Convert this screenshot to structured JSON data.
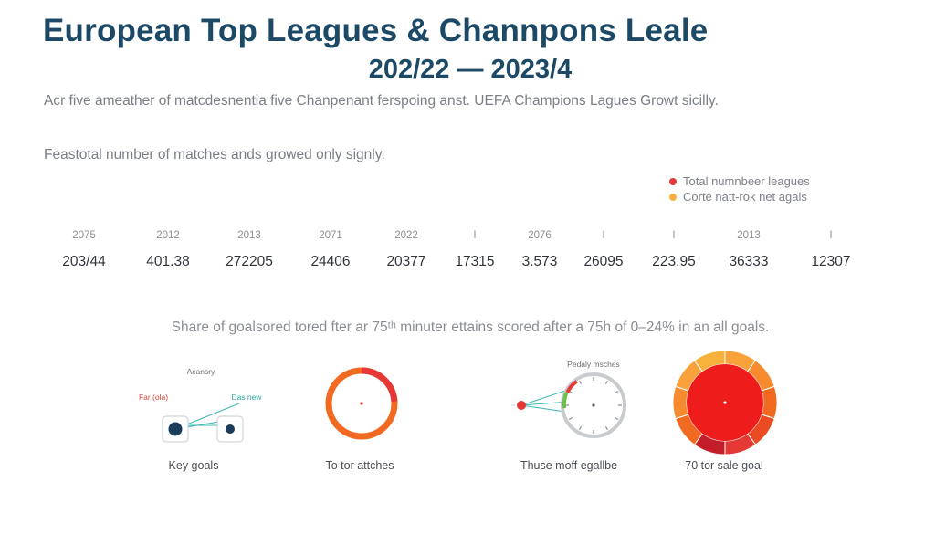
{
  "header": {
    "title": "European Top Leagues & Channpons Leale",
    "subtitle": "202/22 — 2023/4"
  },
  "description": {
    "line1": "Acr five ameather of matcdesnentia five Chanpenant ferspoing anst. UEFA Champions Lagues Growt sicilly.",
    "line2": "Feastotal number of matches ands growed only signly."
  },
  "legend": [
    {
      "label": "Total numnbeer leagues",
      "color": "#e53935"
    },
    {
      "label": "Corte natt-rok net agals",
      "color": "#f7b23b"
    }
  ],
  "chart_data": [
    {
      "type": "table",
      "columns": [
        "2075",
        "2012",
        "2013",
        "2071",
        "2022",
        "I",
        "2076",
        "I",
        "I",
        "2013",
        "I"
      ],
      "values": [
        "203/44",
        "401.38",
        "272205",
        "24406",
        "20377",
        "17315",
        "3.573",
        "26095",
        "223.95",
        "36333",
        "12307"
      ]
    },
    {
      "type": "pie",
      "title": "Share of goalsored tored fter ar 75ᵗʰ minuter ettains scored after a 75h of 0–24% in an all goals.",
      "panels": [
        {
          "caption": "Key goals",
          "label_top": "Acansry",
          "label_left": "Far (ola)",
          "label_right": "Das new"
        },
        {
          "caption": "To tor attches",
          "arc_fraction": 0.24
        },
        {
          "caption": "Thuse moff egallbe",
          "label_top": "Pedaly msches",
          "arc_fraction": 0.08
        },
        {
          "caption": "70 tor sale goal"
        }
      ]
    }
  ],
  "colors": {
    "title": "#1c4a66",
    "red": "#e53935",
    "orange": "#f26a21",
    "amber": "#f7b23b",
    "teal": "#3cb8b0",
    "navy": "#1b3b5a",
    "green": "#6cc04a"
  }
}
